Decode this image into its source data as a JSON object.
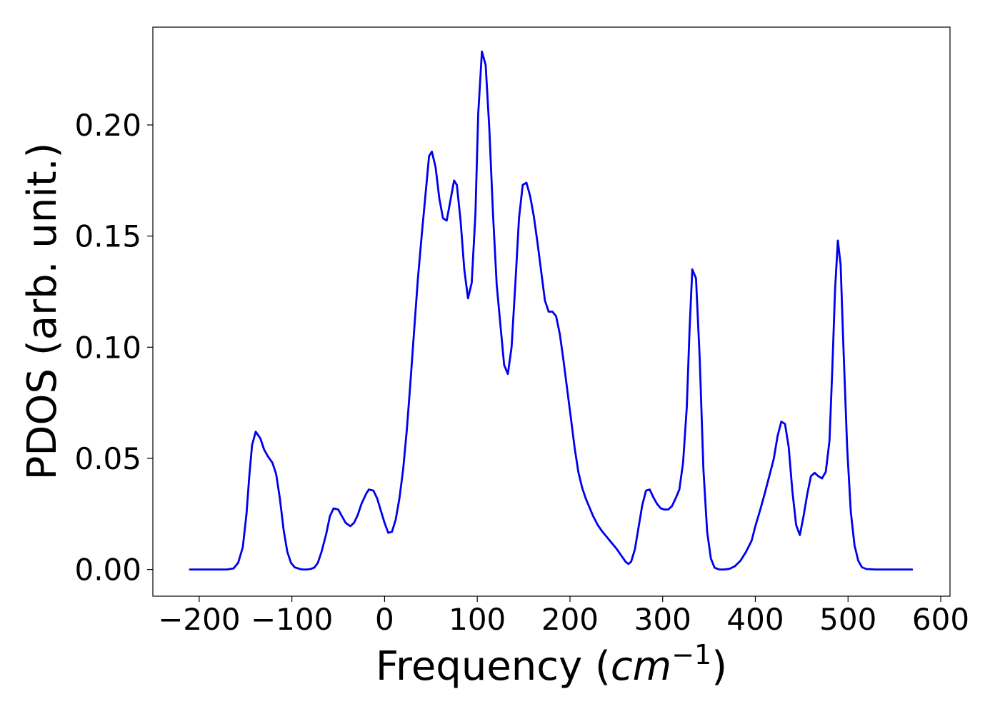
{
  "chart_data": {
    "type": "line",
    "title": "",
    "xlabel_text": "Frequency (",
    "xlabel_math_base": "cm",
    "xlabel_math_sup": "−1",
    "xlabel_close": ")",
    "ylabel": "PDOS (arb. unit.)",
    "xlim": [
      -250,
      610
    ],
    "ylim": [
      -0.012,
      0.244
    ],
    "xticks": [
      -200,
      -100,
      0,
      100,
      200,
      300,
      400,
      500,
      600
    ],
    "xtick_labels": [
      "−200",
      "−100",
      "0",
      "100",
      "200",
      "300",
      "400",
      "500",
      "600"
    ],
    "yticks": [
      0.0,
      0.05,
      0.1,
      0.15,
      0.2
    ],
    "ytick_labels": [
      "0.00",
      "0.05",
      "0.10",
      "0.15",
      "0.20"
    ],
    "grid": false,
    "line_color": "#0000ee",
    "series": [
      {
        "x": [
          -210,
          -170,
          -163,
          -158,
          -153,
          -149,
          -146,
          -143,
          -139,
          -134,
          -130,
          -126,
          -121,
          -117,
          -113,
          -109,
          -105,
          -101,
          -97,
          -92,
          -88,
          -84,
          -80,
          -76,
          -72,
          -68,
          -63,
          -59,
          -55,
          -50,
          -46,
          -42,
          -37,
          -33,
          -29,
          -25,
          -20,
          -17,
          -12,
          -8,
          -4,
          0,
          4,
          8,
          12,
          16,
          20,
          24,
          28,
          32,
          36,
          40,
          44,
          48,
          51,
          55,
          59,
          63,
          67,
          71,
          75,
          78,
          82,
          86,
          90,
          94,
          98,
          101,
          105,
          109,
          113,
          117,
          121,
          125,
          129,
          133,
          137,
          141,
          145,
          149,
          153,
          157,
          161,
          165,
          169,
          173,
          177,
          181,
          185,
          189,
          193,
          197,
          201,
          205,
          209,
          213,
          217,
          221,
          225,
          230,
          235,
          240,
          245,
          250,
          255,
          260,
          263,
          266,
          270,
          274,
          278,
          282,
          286,
          290,
          294,
          298,
          302,
          306,
          310,
          314,
          318,
          322,
          326,
          329,
          332,
          336,
          340,
          344,
          348,
          352,
          356,
          361,
          366,
          372,
          378,
          384,
          390,
          396,
          400,
          405,
          410,
          415,
          420,
          424,
          428,
          432,
          436,
          440,
          444,
          448,
          452,
          456,
          460,
          464,
          468,
          472,
          476,
          480,
          483,
          486,
          489,
          492,
          495,
          499,
          503,
          507,
          511,
          515,
          520,
          530,
          569
        ],
        "y": [
          0.0,
          0.0,
          0.0005,
          0.003,
          0.01,
          0.025,
          0.042,
          0.056,
          0.062,
          0.059,
          0.054,
          0.051,
          0.048,
          0.043,
          0.032,
          0.018,
          0.008,
          0.003,
          0.001,
          0.0003,
          0.0,
          0.0,
          0.0002,
          0.0008,
          0.003,
          0.008,
          0.016,
          0.024,
          0.0275,
          0.027,
          0.024,
          0.021,
          0.0195,
          0.021,
          0.0245,
          0.0295,
          0.034,
          0.036,
          0.0355,
          0.032,
          0.0265,
          0.021,
          0.0165,
          0.017,
          0.0225,
          0.032,
          0.045,
          0.063,
          0.085,
          0.108,
          0.131,
          0.15,
          0.168,
          0.186,
          0.188,
          0.181,
          0.167,
          0.158,
          0.157,
          0.166,
          0.175,
          0.173,
          0.157,
          0.135,
          0.122,
          0.129,
          0.16,
          0.205,
          0.233,
          0.227,
          0.198,
          0.16,
          0.128,
          0.11,
          0.092,
          0.088,
          0.1,
          0.128,
          0.158,
          0.173,
          0.174,
          0.168,
          0.159,
          0.147,
          0.134,
          0.121,
          0.116,
          0.116,
          0.114,
          0.106,
          0.094,
          0.081,
          0.068,
          0.055,
          0.044,
          0.037,
          0.032,
          0.028,
          0.024,
          0.02,
          0.017,
          0.0145,
          0.012,
          0.0095,
          0.0065,
          0.0035,
          0.0025,
          0.0035,
          0.009,
          0.019,
          0.029,
          0.0355,
          0.036,
          0.0325,
          0.0295,
          0.0275,
          0.027,
          0.027,
          0.0285,
          0.032,
          0.036,
          0.048,
          0.073,
          0.108,
          0.135,
          0.131,
          0.095,
          0.045,
          0.017,
          0.005,
          0.0008,
          0.0,
          0.0,
          0.0003,
          0.0015,
          0.004,
          0.008,
          0.013,
          0.0195,
          0.0265,
          0.034,
          0.042,
          0.05,
          0.06,
          0.0665,
          0.0655,
          0.055,
          0.035,
          0.02,
          0.0155,
          0.024,
          0.034,
          0.042,
          0.0435,
          0.042,
          0.041,
          0.044,
          0.058,
          0.09,
          0.126,
          0.148,
          0.137,
          0.1,
          0.055,
          0.026,
          0.011,
          0.004,
          0.001,
          0.0002,
          0.0,
          0.0
        ]
      }
    ]
  }
}
